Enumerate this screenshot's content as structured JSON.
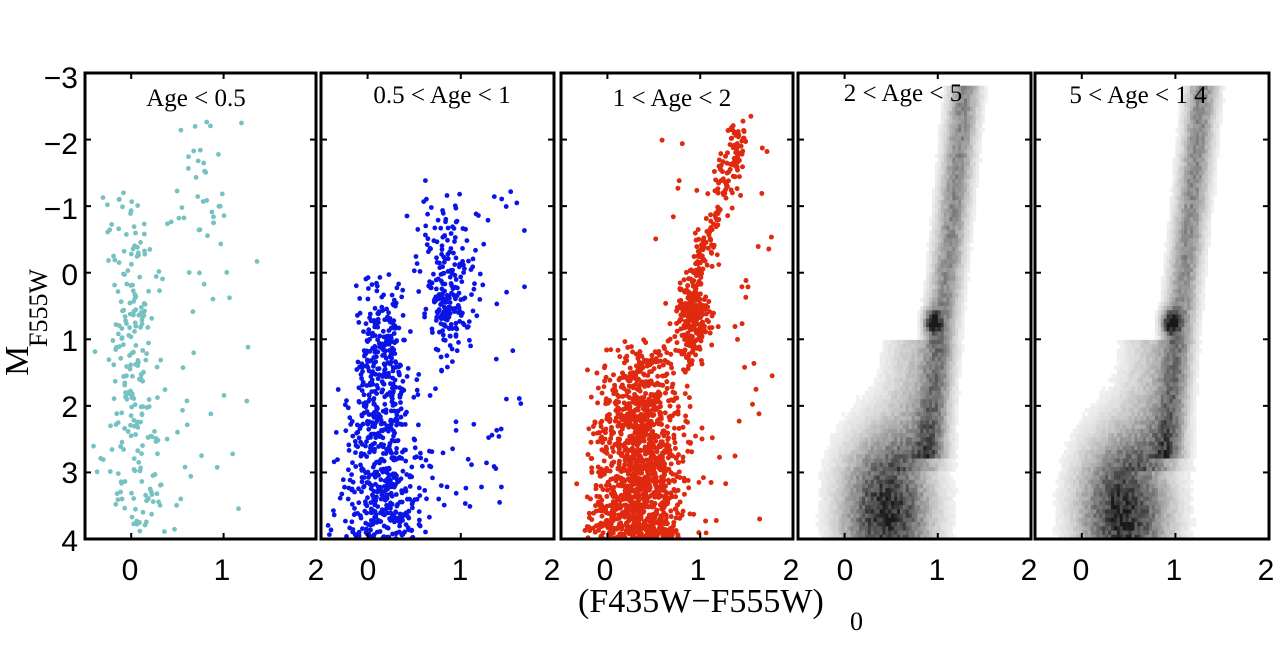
{
  "chart_data": {
    "type": "scatter",
    "xlabel": "(F435W−F555W)",
    "xlabel_sub": "0",
    "ylabel": "M",
    "ylabel_sub": "F555W",
    "xlim": [
      -0.5,
      2
    ],
    "ylim": [
      4,
      -3
    ],
    "x_ticks": [
      "0",
      "1",
      "2"
    ],
    "y_ticks": [
      "−3",
      "−2",
      "−1",
      "0",
      "1",
      "2",
      "3",
      "4"
    ],
    "panels": [
      {
        "title": "Age < 0.5",
        "style": "scatter",
        "color": "#76c1c1",
        "n": 300
      },
      {
        "title": "0.5 < Age < 1",
        "style": "scatter",
        "color": "#0a14e6",
        "n": 1000
      },
      {
        "title": "1 < Age <  2",
        "style": "scatter",
        "color": "#e02a10",
        "n": 3500
      },
      {
        "title": "2 < Age <  5",
        "style": "hess",
        "color": "#000000",
        "n": 0
      },
      {
        "title": "5 < Age < 1 4",
        "style": "hess",
        "color": "#000000",
        "n": 0
      }
    ],
    "features": {
      "main_sequence": {
        "color_center": 0.2,
        "mag_range": [
          0,
          4
        ]
      },
      "red_clump": {
        "color": 0.9,
        "mag": 0.7
      },
      "red_giant_branch_tip": {
        "color": 1.3,
        "mag": -2.5
      }
    }
  }
}
